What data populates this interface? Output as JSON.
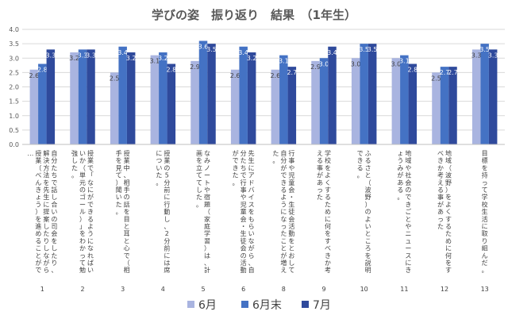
{
  "chart_data": {
    "type": "bar",
    "title": "学びの姿　振り返り　結果　（1年生）",
    "ylim": [
      0,
      4.0
    ],
    "yticks": [
      "0.0",
      "0.5",
      "1.0",
      "1.5",
      "2.0",
      "2.5",
      "3.0",
      "3.5",
      "4.0"
    ],
    "grid": true,
    "legend_position": "bottom",
    "categories": [
      {
        "num": "1",
        "label": "自分たちで話し合いの司会をしたり、解決方法を先生に提案したりしながら授業（べんきょう）を進めることがで…"
      },
      {
        "num": "2",
        "label": "授業で「なにができるようになればいいか（単元のゴール）」をわかって勉強した。"
      },
      {
        "num": "3",
        "label": "授業中、相手の話を目と耳と心で（相手を見て）聞いた。"
      },
      {
        "num": "4",
        "label": "授業の5分前に行動し、2分前には席についた。"
      },
      {
        "num": "5",
        "label": "なみノートや宿題（家庭学習）は、計画を立ててした。"
      },
      {
        "num": "6",
        "label": "先生にアドバイスをもらいながら、自分たちで行事や児童会・生徒会の活動ができた。"
      },
      {
        "num": "8",
        "label": "行事や児童会・生徒会活動をとおして自分ができるようになったことが増えた。"
      },
      {
        "num": "9",
        "label": "学校をよくするために何をすべきか考える事があった"
      },
      {
        "num": "10",
        "label": "ふるさと（波野）のよいところを説明できる。"
      },
      {
        "num": "11",
        "label": "地域や社会のできごとやニュースにきょうみがある。"
      },
      {
        "num": "12",
        "label": "地域（波野）をよくするために何をすべきか考える事があった"
      },
      {
        "num": "13",
        "label": "目標を持って学校生活に取り組んだ。"
      }
    ],
    "series": [
      {
        "name": "6月",
        "color": "#a9b4e0",
        "values": [
          2.6,
          3.2,
          2.5,
          3.1,
          2.9,
          2.6,
          2.6,
          2.9,
          3.0,
          3.0,
          2.5,
          3.3
        ]
      },
      {
        "name": "6月末",
        "color": "#4472c4",
        "values": [
          2.8,
          3.3,
          3.4,
          3.2,
          3.6,
          3.4,
          3.1,
          3.0,
          3.5,
          3.1,
          2.7,
          3.5
        ]
      },
      {
        "name": "7月",
        "color": "#2f4a9c",
        "values": [
          3.3,
          3.3,
          3.2,
          2.8,
          3.5,
          3.2,
          2.7,
          3.4,
          3.5,
          2.8,
          2.7,
          3.3
        ]
      }
    ]
  }
}
